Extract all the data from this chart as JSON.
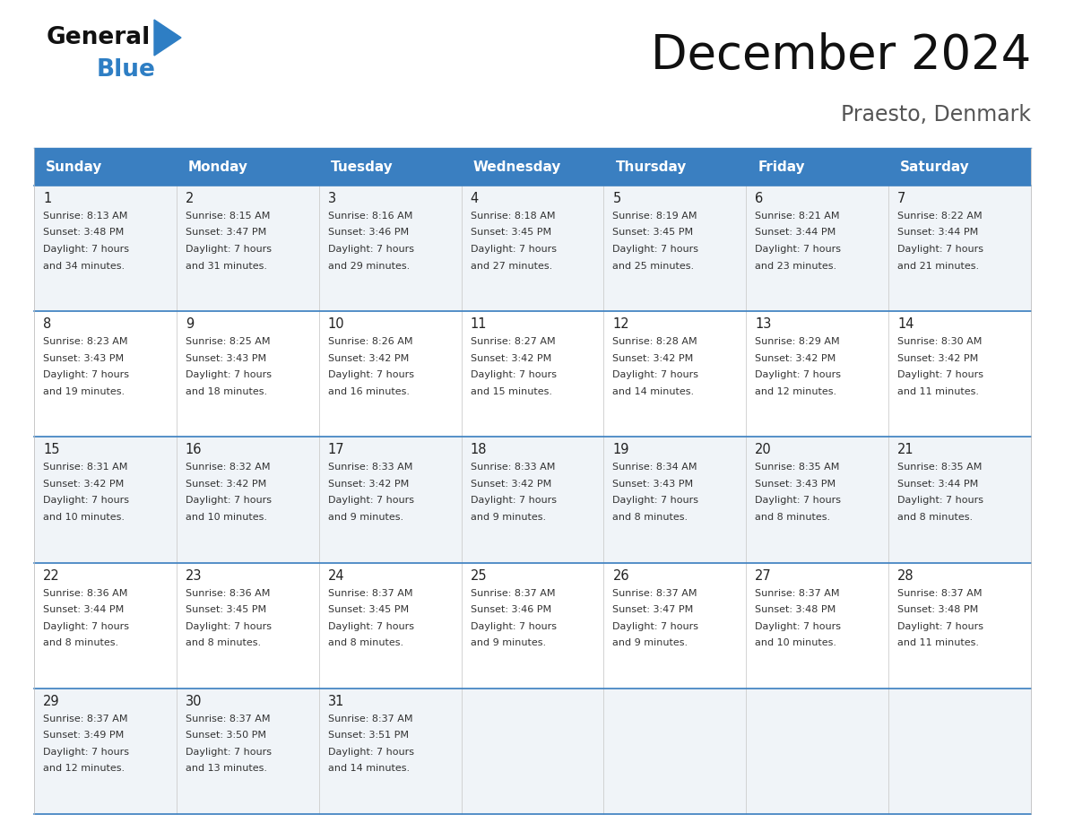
{
  "title": "December 2024",
  "subtitle": "Praesto, Denmark",
  "days_of_week": [
    "Sunday",
    "Monday",
    "Tuesday",
    "Wednesday",
    "Thursday",
    "Friday",
    "Saturday"
  ],
  "header_bg": "#3A7FC1",
  "header_text_color": "#FFFFFF",
  "cell_bg_odd": "#F0F4F8",
  "cell_bg_even": "#FFFFFF",
  "day_num_color": "#222222",
  "text_color": "#333333",
  "border_color": "#3A7FC1",
  "line_color": "#3A7FC1",
  "logo_black": "#111111",
  "logo_blue": "#2E7EC4",
  "calendar_data": [
    [
      {
        "day": 1,
        "sunrise": "8:13 AM",
        "sunset": "3:48 PM",
        "dl_min": "34"
      },
      {
        "day": 2,
        "sunrise": "8:15 AM",
        "sunset": "3:47 PM",
        "dl_min": "31"
      },
      {
        "day": 3,
        "sunrise": "8:16 AM",
        "sunset": "3:46 PM",
        "dl_min": "29"
      },
      {
        "day": 4,
        "sunrise": "8:18 AM",
        "sunset": "3:45 PM",
        "dl_min": "27"
      },
      {
        "day": 5,
        "sunrise": "8:19 AM",
        "sunset": "3:45 PM",
        "dl_min": "25"
      },
      {
        "day": 6,
        "sunrise": "8:21 AM",
        "sunset": "3:44 PM",
        "dl_min": "23"
      },
      {
        "day": 7,
        "sunrise": "8:22 AM",
        "sunset": "3:44 PM",
        "dl_min": "21"
      }
    ],
    [
      {
        "day": 8,
        "sunrise": "8:23 AM",
        "sunset": "3:43 PM",
        "dl_min": "19"
      },
      {
        "day": 9,
        "sunrise": "8:25 AM",
        "sunset": "3:43 PM",
        "dl_min": "18"
      },
      {
        "day": 10,
        "sunrise": "8:26 AM",
        "sunset": "3:42 PM",
        "dl_min": "16"
      },
      {
        "day": 11,
        "sunrise": "8:27 AM",
        "sunset": "3:42 PM",
        "dl_min": "15"
      },
      {
        "day": 12,
        "sunrise": "8:28 AM",
        "sunset": "3:42 PM",
        "dl_min": "14"
      },
      {
        "day": 13,
        "sunrise": "8:29 AM",
        "sunset": "3:42 PM",
        "dl_min": "12"
      },
      {
        "day": 14,
        "sunrise": "8:30 AM",
        "sunset": "3:42 PM",
        "dl_min": "11"
      }
    ],
    [
      {
        "day": 15,
        "sunrise": "8:31 AM",
        "sunset": "3:42 PM",
        "dl_min": "10"
      },
      {
        "day": 16,
        "sunrise": "8:32 AM",
        "sunset": "3:42 PM",
        "dl_min": "10"
      },
      {
        "day": 17,
        "sunrise": "8:33 AM",
        "sunset": "3:42 PM",
        "dl_min": "9"
      },
      {
        "day": 18,
        "sunrise": "8:33 AM",
        "sunset": "3:42 PM",
        "dl_min": "9"
      },
      {
        "day": 19,
        "sunrise": "8:34 AM",
        "sunset": "3:43 PM",
        "dl_min": "8"
      },
      {
        "day": 20,
        "sunrise": "8:35 AM",
        "sunset": "3:43 PM",
        "dl_min": "8"
      },
      {
        "day": 21,
        "sunrise": "8:35 AM",
        "sunset": "3:44 PM",
        "dl_min": "8"
      }
    ],
    [
      {
        "day": 22,
        "sunrise": "8:36 AM",
        "sunset": "3:44 PM",
        "dl_min": "8"
      },
      {
        "day": 23,
        "sunrise": "8:36 AM",
        "sunset": "3:45 PM",
        "dl_min": "8"
      },
      {
        "day": 24,
        "sunrise": "8:37 AM",
        "sunset": "3:45 PM",
        "dl_min": "8"
      },
      {
        "day": 25,
        "sunrise": "8:37 AM",
        "sunset": "3:46 PM",
        "dl_min": "9"
      },
      {
        "day": 26,
        "sunrise": "8:37 AM",
        "sunset": "3:47 PM",
        "dl_min": "9"
      },
      {
        "day": 27,
        "sunrise": "8:37 AM",
        "sunset": "3:48 PM",
        "dl_min": "10"
      },
      {
        "day": 28,
        "sunrise": "8:37 AM",
        "sunset": "3:48 PM",
        "dl_min": "11"
      }
    ],
    [
      {
        "day": 29,
        "sunrise": "8:37 AM",
        "sunset": "3:49 PM",
        "dl_min": "12"
      },
      {
        "day": 30,
        "sunrise": "8:37 AM",
        "sunset": "3:50 PM",
        "dl_min": "13"
      },
      {
        "day": 31,
        "sunrise": "8:37 AM",
        "sunset": "3:51 PM",
        "dl_min": "14"
      },
      null,
      null,
      null,
      null
    ]
  ]
}
